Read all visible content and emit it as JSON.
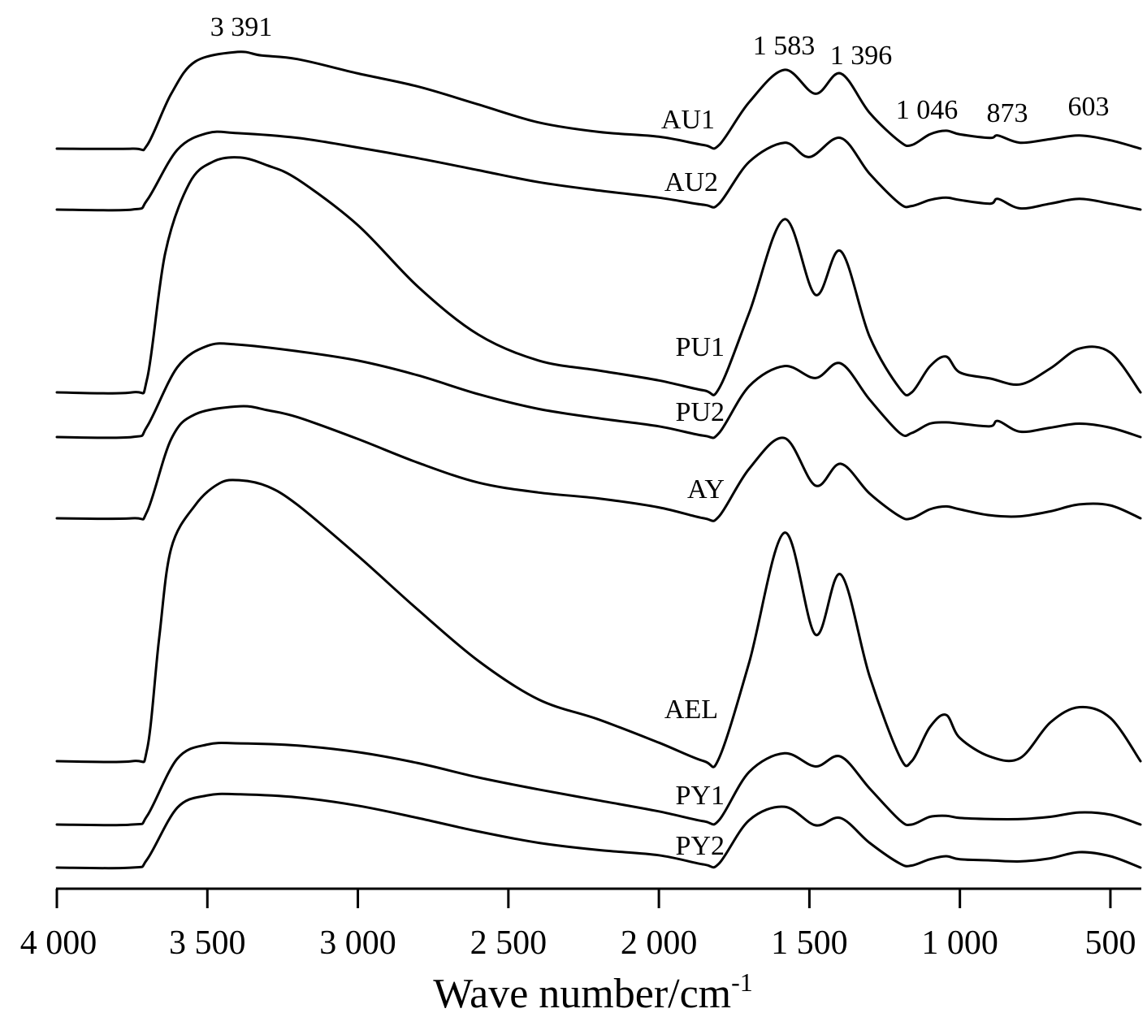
{
  "chart_data": {
    "type": "line",
    "title": "",
    "xlabel": "Wave number/cm",
    "xlabel_superscript": "-1",
    "ylabel": "",
    "xlim": [
      4000,
      400
    ],
    "x_reversed": true,
    "y_axis_shown": false,
    "grid": false,
    "legend": "none (series labelled inline)",
    "x_ticks": [
      {
        "value": 4000,
        "label": "4 000"
      },
      {
        "value": 3500,
        "label": "3 500"
      },
      {
        "value": 3000,
        "label": "3 000"
      },
      {
        "value": 2500,
        "label": "2 500"
      },
      {
        "value": 2000,
        "label": "2 000"
      },
      {
        "value": 1500,
        "label": "1 500"
      },
      {
        "value": 1000,
        "label": "1 000"
      },
      {
        "value": 500,
        "label": "500"
      }
    ],
    "annotations": [
      {
        "label": "3 391",
        "x": 3391
      },
      {
        "label": "1 583",
        "x": 1583
      },
      {
        "label": "1 396",
        "x": 1396
      },
      {
        "label": "1 046",
        "x": 1046
      },
      {
        "label": "873",
        "x": 873
      },
      {
        "label": "603",
        "x": 603
      }
    ],
    "series": [
      {
        "name": "AU1",
        "x": [
          4000,
          3750,
          3700,
          3620,
          3540,
          3400,
          3320,
          3200,
          3000,
          2800,
          2600,
          2400,
          2200,
          2000,
          1850,
          1800,
          1700,
          1583,
          1480,
          1396,
          1300,
          1200,
          1160,
          1100,
          1046,
          1000,
          900,
          873,
          800,
          700,
          603,
          500,
          400
        ],
        "y": [
          0.0,
          0.0,
          0.03,
          0.46,
          0.73,
          0.81,
          0.78,
          0.75,
          0.63,
          0.52,
          0.37,
          0.22,
          0.14,
          0.1,
          0.03,
          0.03,
          0.39,
          0.66,
          0.46,
          0.63,
          0.3,
          0.06,
          0.03,
          0.12,
          0.15,
          0.12,
          0.09,
          0.11,
          0.05,
          0.08,
          0.11,
          0.07,
          0.0
        ]
      },
      {
        "name": "AU2",
        "x": [
          4000,
          3750,
          3700,
          3600,
          3500,
          3400,
          3200,
          3000,
          2800,
          2600,
          2400,
          2200,
          2000,
          1850,
          1800,
          1700,
          1583,
          1500,
          1396,
          1300,
          1200,
          1160,
          1100,
          1046,
          1000,
          900,
          873,
          800,
          700,
          603,
          500,
          400
        ],
        "y": [
          0.0,
          0.0,
          0.08,
          0.5,
          0.64,
          0.64,
          0.6,
          0.52,
          0.43,
          0.33,
          0.23,
          0.16,
          0.1,
          0.04,
          0.05,
          0.4,
          0.56,
          0.44,
          0.6,
          0.3,
          0.05,
          0.03,
          0.08,
          0.1,
          0.08,
          0.05,
          0.09,
          0.01,
          0.05,
          0.09,
          0.05,
          0.0
        ]
      },
      {
        "name": "PU1",
        "x": [
          4000,
          3750,
          3700,
          3640,
          3560,
          3480,
          3391,
          3300,
          3200,
          3000,
          2800,
          2600,
          2400,
          2200,
          2000,
          1850,
          1800,
          1700,
          1583,
          1480,
          1396,
          1300,
          1200,
          1160,
          1100,
          1046,
          1000,
          900,
          800,
          700,
          603,
          500,
          400
        ],
        "y": [
          0.0,
          0.0,
          0.07,
          0.7,
          1.05,
          1.16,
          1.18,
          1.14,
          1.07,
          0.84,
          0.53,
          0.29,
          0.16,
          0.11,
          0.06,
          0.01,
          0.02,
          0.4,
          0.87,
          0.49,
          0.71,
          0.28,
          0.02,
          0.0,
          0.13,
          0.18,
          0.1,
          0.07,
          0.04,
          0.12,
          0.22,
          0.2,
          0.0
        ]
      },
      {
        "name": "PU2",
        "x": [
          4000,
          3750,
          3700,
          3600,
          3500,
          3400,
          3200,
          3000,
          2800,
          2600,
          2400,
          2200,
          2000,
          1850,
          1800,
          1700,
          1583,
          1480,
          1396,
          1300,
          1200,
          1160,
          1100,
          1046,
          1000,
          900,
          873,
          800,
          700,
          603,
          500,
          400
        ],
        "y": [
          0.0,
          0.0,
          0.08,
          0.52,
          0.68,
          0.69,
          0.64,
          0.57,
          0.46,
          0.32,
          0.21,
          0.14,
          0.08,
          0.01,
          0.03,
          0.38,
          0.53,
          0.44,
          0.55,
          0.28,
          0.03,
          0.03,
          0.1,
          0.11,
          0.1,
          0.08,
          0.12,
          0.04,
          0.07,
          0.1,
          0.07,
          0.0
        ]
      },
      {
        "name": "AY",
        "x": [
          4000,
          3750,
          3700,
          3620,
          3540,
          3391,
          3300,
          3200,
          3000,
          2800,
          2600,
          2400,
          2200,
          2000,
          1850,
          1800,
          1700,
          1583,
          1480,
          1396,
          1300,
          1200,
          1160,
          1100,
          1046,
          1000,
          900,
          800,
          700,
          603,
          500,
          400
        ],
        "y": [
          0.0,
          0.0,
          0.07,
          0.8,
          1.05,
          1.13,
          1.09,
          1.02,
          0.8,
          0.56,
          0.36,
          0.26,
          0.2,
          0.11,
          0.0,
          0.02,
          0.5,
          0.81,
          0.33,
          0.55,
          0.25,
          0.02,
          0.0,
          0.09,
          0.12,
          0.09,
          0.03,
          0.02,
          0.07,
          0.14,
          0.13,
          0.0
        ]
      },
      {
        "name": "AEL",
        "x": [
          4000,
          3750,
          3700,
          3660,
          3620,
          3540,
          3460,
          3391,
          3300,
          3200,
          3000,
          2800,
          2600,
          2400,
          2200,
          2000,
          1850,
          1800,
          1700,
          1583,
          1480,
          1396,
          1300,
          1200,
          1160,
          1100,
          1046,
          1000,
          900,
          800,
          700,
          603,
          500,
          400
        ],
        "y": [
          0.0,
          0.0,
          0.08,
          0.8,
          1.38,
          1.66,
          1.8,
          1.82,
          1.78,
          1.66,
          1.33,
          0.98,
          0.65,
          0.4,
          0.27,
          0.12,
          0.0,
          0.02,
          0.64,
          1.48,
          0.82,
          1.21,
          0.55,
          0.03,
          0.0,
          0.22,
          0.3,
          0.15,
          0.03,
          0.02,
          0.25,
          0.35,
          0.28,
          0.0
        ]
      },
      {
        "name": "PY1",
        "x": [
          4000,
          3750,
          3700,
          3600,
          3500,
          3391,
          3200,
          3000,
          2800,
          2600,
          2400,
          2200,
          2000,
          1850,
          1800,
          1700,
          1583,
          1480,
          1396,
          1300,
          1200,
          1160,
          1100,
          1046,
          1000,
          900,
          800,
          700,
          603,
          500,
          400
        ],
        "y": [
          0.0,
          0.0,
          0.08,
          0.6,
          0.73,
          0.74,
          0.72,
          0.66,
          0.56,
          0.43,
          0.32,
          0.22,
          0.12,
          0.03,
          0.04,
          0.48,
          0.65,
          0.53,
          0.62,
          0.33,
          0.04,
          0.0,
          0.07,
          0.08,
          0.06,
          0.05,
          0.05,
          0.07,
          0.11,
          0.09,
          0.0
        ]
      },
      {
        "name": "PY2",
        "x": [
          4000,
          3750,
          3700,
          3600,
          3500,
          3391,
          3200,
          3000,
          2800,
          2600,
          2400,
          2200,
          2000,
          1850,
          1800,
          1700,
          1583,
          1480,
          1396,
          1300,
          1200,
          1160,
          1100,
          1046,
          1000,
          900,
          800,
          700,
          603,
          500,
          400
        ],
        "y": [
          0.0,
          0.0,
          0.08,
          0.58,
          0.7,
          0.71,
          0.68,
          0.6,
          0.48,
          0.35,
          0.24,
          0.17,
          0.12,
          0.03,
          0.04,
          0.46,
          0.59,
          0.41,
          0.48,
          0.24,
          0.04,
          0.02,
          0.08,
          0.11,
          0.08,
          0.07,
          0.06,
          0.09,
          0.15,
          0.11,
          0.0
        ]
      }
    ]
  }
}
